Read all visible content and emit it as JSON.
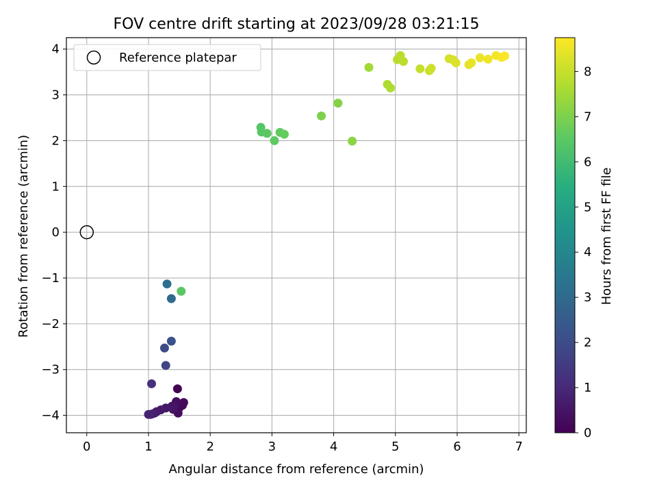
{
  "chart_data": {
    "type": "scatter",
    "title": "FOV centre drift starting at 2023/09/28 03:21:15",
    "xlabel": "Angular distance from reference (arcmin)",
    "ylabel": "Rotation from reference (arcmin)",
    "xlim": [
      -0.33,
      7.12
    ],
    "ylim": [
      -4.38,
      4.25
    ],
    "xticks": [
      "0",
      "1",
      "2",
      "3",
      "4",
      "5",
      "6",
      "7"
    ],
    "yticks": [
      "−4",
      "−3",
      "−2",
      "−1",
      "0",
      "1",
      "2",
      "3",
      "4"
    ],
    "grid": true,
    "legend": {
      "placement": "upper-left",
      "entries": [
        "Reference platepar"
      ]
    },
    "reference_point": {
      "x": 0,
      "y": 0
    },
    "colorbar": {
      "label": "Hours from first FF file",
      "min": 0,
      "max": 8.75,
      "ticks": [
        "0",
        "1",
        "2",
        "3",
        "4",
        "5",
        "6",
        "7",
        "8"
      ],
      "colormap": "viridis"
    },
    "series": [
      {
        "points": [
          {
            "x": 1.47,
            "y": -3.42,
            "c": 0.0
          },
          {
            "x": 1.5,
            "y": -3.83,
            "c": 0.1
          },
          {
            "x": 1.55,
            "y": -3.78,
            "c": 0.15
          },
          {
            "x": 1.57,
            "y": -3.72,
            "c": 0.2
          },
          {
            "x": 1.48,
            "y": -3.95,
            "c": 0.25
          },
          {
            "x": 1.45,
            "y": -3.7,
            "c": 0.3
          },
          {
            "x": 1.43,
            "y": -3.76,
            "c": 0.35
          },
          {
            "x": 1.42,
            "y": -3.82,
            "c": 0.4
          },
          {
            "x": 1.4,
            "y": -3.87,
            "c": 0.45
          },
          {
            "x": 1.38,
            "y": -3.8,
            "c": 0.5
          },
          {
            "x": 1.28,
            "y": -3.84,
            "c": 0.55
          },
          {
            "x": 1.2,
            "y": -3.88,
            "c": 0.6
          },
          {
            "x": 1.13,
            "y": -3.92,
            "c": 0.65
          },
          {
            "x": 1.1,
            "y": -3.95,
            "c": 0.7
          },
          {
            "x": 1.06,
            "y": -3.97,
            "c": 0.75
          },
          {
            "x": 1.03,
            "y": -3.98,
            "c": 0.8
          },
          {
            "x": 1.0,
            "y": -3.98,
            "c": 0.85
          },
          {
            "x": 1.05,
            "y": -3.31,
            "c": 1.2
          },
          {
            "x": 1.28,
            "y": -2.91,
            "c": 1.8
          },
          {
            "x": 1.26,
            "y": -2.53,
            "c": 2.0
          },
          {
            "x": 1.37,
            "y": -2.38,
            "c": 2.2
          },
          {
            "x": 1.37,
            "y": -1.45,
            "c": 3.0
          },
          {
            "x": 1.3,
            "y": -1.13,
            "c": 3.2
          },
          {
            "x": 1.53,
            "y": -1.29,
            "c": 6.5
          },
          {
            "x": 2.82,
            "y": 2.29,
            "c": 6.4
          },
          {
            "x": 2.83,
            "y": 2.19,
            "c": 6.45
          },
          {
            "x": 2.92,
            "y": 2.16,
            "c": 6.5
          },
          {
            "x": 3.04,
            "y": 2.0,
            "c": 6.55
          },
          {
            "x": 3.13,
            "y": 2.18,
            "c": 6.6
          },
          {
            "x": 3.2,
            "y": 2.14,
            "c": 6.65
          },
          {
            "x": 3.8,
            "y": 2.54,
            "c": 7.0
          },
          {
            "x": 4.07,
            "y": 2.82,
            "c": 7.1
          },
          {
            "x": 4.3,
            "y": 1.99,
            "c": 7.2
          },
          {
            "x": 4.57,
            "y": 3.6,
            "c": 7.5
          },
          {
            "x": 4.87,
            "y": 3.23,
            "c": 7.65
          },
          {
            "x": 4.92,
            "y": 3.15,
            "c": 7.7
          },
          {
            "x": 5.03,
            "y": 3.77,
            "c": 7.8
          },
          {
            "x": 5.08,
            "y": 3.86,
            "c": 7.82
          },
          {
            "x": 5.13,
            "y": 3.73,
            "c": 7.85
          },
          {
            "x": 5.4,
            "y": 3.57,
            "c": 8.0
          },
          {
            "x": 5.55,
            "y": 3.53,
            "c": 8.05
          },
          {
            "x": 5.58,
            "y": 3.58,
            "c": 8.1
          },
          {
            "x": 5.87,
            "y": 3.79,
            "c": 8.2
          },
          {
            "x": 5.93,
            "y": 3.77,
            "c": 8.25
          },
          {
            "x": 5.98,
            "y": 3.7,
            "c": 8.3
          },
          {
            "x": 6.19,
            "y": 3.66,
            "c": 8.4
          },
          {
            "x": 6.23,
            "y": 3.7,
            "c": 8.45
          },
          {
            "x": 6.37,
            "y": 3.81,
            "c": 8.5
          },
          {
            "x": 6.5,
            "y": 3.78,
            "c": 8.55
          },
          {
            "x": 6.63,
            "y": 3.86,
            "c": 8.6
          },
          {
            "x": 6.72,
            "y": 3.82,
            "c": 8.65
          },
          {
            "x": 6.77,
            "y": 3.85,
            "c": 8.7
          }
        ]
      }
    ]
  }
}
